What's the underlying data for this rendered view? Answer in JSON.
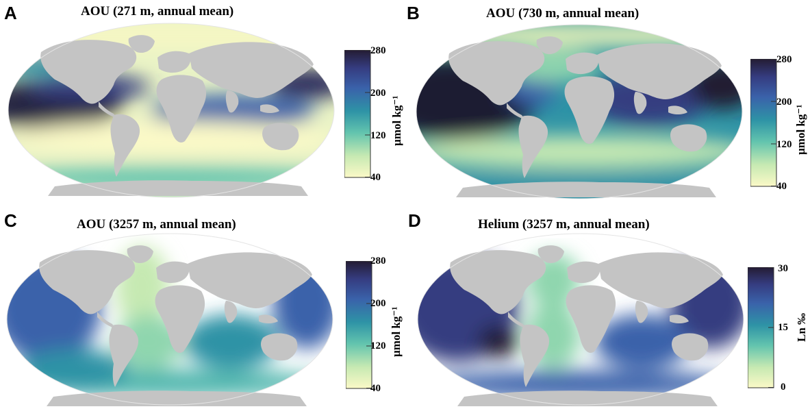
{
  "panels": [
    {
      "letter": "A",
      "title": "AOU (271 m, annual mean)",
      "colorbar": {
        "ticks": [
          "280",
          "200",
          "120",
          "40"
        ],
        "unit": "µmol kg⁻¹"
      }
    },
    {
      "letter": "B",
      "title": "AOU (730 m, annual mean)",
      "colorbar": {
        "ticks": [
          "280",
          "200",
          "120",
          "40"
        ],
        "unit": "µmol kg⁻¹"
      }
    },
    {
      "letter": "C",
      "title": "AOU (3257 m, annual mean)",
      "colorbar": {
        "ticks": [
          "280",
          "200",
          "120",
          "40"
        ],
        "unit": "µmol kg⁻¹"
      }
    },
    {
      "letter": "D",
      "title": "Helium (3257 m, annual mean)",
      "colorbar": {
        "ticks": [
          "30",
          "15",
          "0"
        ],
        "unit": "Ln ‰"
      }
    }
  ],
  "colors": {
    "land": "#c4c4c4",
    "colormap": [
      "#fbf9c7",
      "#c6e9b2",
      "#63c4ae",
      "#2e93a6",
      "#3a62aa",
      "#353c80",
      "#241c33"
    ]
  }
}
